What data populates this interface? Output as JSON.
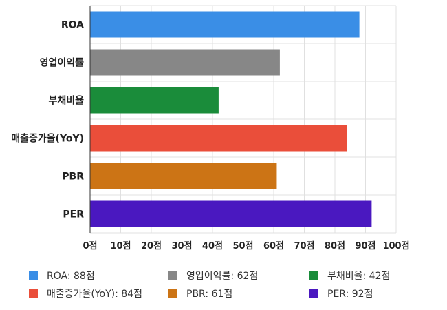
{
  "chart_data": {
    "type": "bar",
    "orientation": "horizontal",
    "categories": [
      "ROA",
      "영업이익률",
      "부채비율",
      "매출증가율(YoY)",
      "PBR",
      "PER"
    ],
    "values": [
      88,
      62,
      42,
      84,
      61,
      92
    ],
    "colors": [
      "#3a8ee6",
      "#878787",
      "#1a8c3a",
      "#ea4e3a",
      "#cc7415",
      "#4a18c0"
    ],
    "xlim": [
      0,
      100
    ],
    "x_ticks": [
      0,
      10,
      20,
      30,
      40,
      50,
      60,
      70,
      80,
      90,
      100
    ],
    "x_tick_labels": [
      "0점",
      "10점",
      "20점",
      "30점",
      "40점",
      "50점",
      "60점",
      "70점",
      "80점",
      "90점",
      "100점"
    ],
    "grid": true,
    "legend_position": "bottom"
  },
  "legend": [
    {
      "label": "ROA: 88점",
      "color": "#3a8ee6"
    },
    {
      "label": "영업이익률: 62점",
      "color": "#878787"
    },
    {
      "label": "부채비율: 42점",
      "color": "#1a8c3a"
    },
    {
      "label": "매출증가율(YoY): 84점",
      "color": "#ea4e3a"
    },
    {
      "label": "PBR: 61점",
      "color": "#cc7415"
    },
    {
      "label": "PER: 92점",
      "color": "#4a18c0"
    }
  ]
}
